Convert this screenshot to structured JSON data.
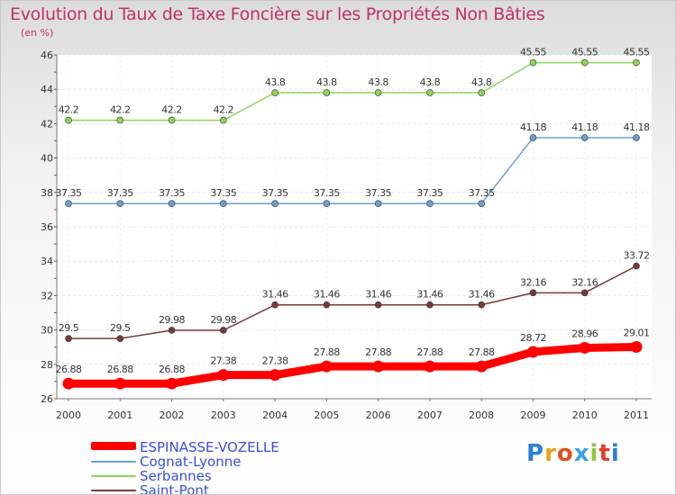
{
  "title": "Evolution du Taux de Taxe Foncière sur les Propriétés Non Bâties",
  "unit": "(en %)",
  "logo_text": "Proxiti",
  "chart_data": {
    "type": "line",
    "title": "Evolution du Taux de Taxe Foncière sur les Propriétés Non Bâties",
    "ylabel": "(en %)",
    "xlabel": "",
    "x": [
      "2000",
      "2001",
      "2002",
      "2003",
      "2004",
      "2005",
      "2006",
      "2007",
      "2008",
      "2009",
      "2010",
      "2011"
    ],
    "ylim": [
      26,
      46
    ],
    "yticks": [
      26,
      28,
      30,
      32,
      34,
      36,
      38,
      40,
      42,
      44,
      46
    ],
    "grid": true,
    "legend_position": "bottom-left",
    "series": [
      {
        "name": "ESPINASSE-VOZELLE",
        "color": "#ff0000",
        "thick": true,
        "values": [
          26.88,
          26.88,
          26.88,
          27.38,
          27.38,
          27.88,
          27.88,
          27.88,
          27.88,
          28.72,
          28.96,
          29.01
        ],
        "labels": [
          "26.88",
          "26.88",
          "26.88",
          "27.38",
          "27.38",
          "27.88",
          "27.88",
          "27.88",
          "27.88",
          "28.72",
          "28.96",
          "29.01"
        ]
      },
      {
        "name": "Cognat-Lyonne",
        "color": "#6b9fd1",
        "thick": false,
        "values": [
          37.35,
          37.35,
          37.35,
          37.35,
          37.35,
          37.35,
          37.35,
          37.35,
          37.35,
          41.18,
          41.18,
          41.18
        ],
        "labels": [
          "37.35",
          "37.35",
          "37.35",
          "37.35",
          "37.35",
          "37.35",
          "37.35",
          "37.35",
          "37.35",
          "41.18",
          "41.18",
          "41.18"
        ]
      },
      {
        "name": "Serbannes",
        "color": "#8fd35a",
        "thick": false,
        "values": [
          42.2,
          42.2,
          42.2,
          42.2,
          43.8,
          43.8,
          43.8,
          43.8,
          43.8,
          45.55,
          45.55,
          45.55
        ],
        "labels": [
          "42.2",
          "42.2",
          "42.2",
          "42.2",
          "43.8",
          "43.8",
          "43.8",
          "43.8",
          "43.8",
          "45.55",
          "45.55",
          "45.55"
        ]
      },
      {
        "name": "Saint-Pont",
        "color": "#7a3a3a",
        "thick": false,
        "values": [
          29.5,
          29.5,
          29.98,
          29.98,
          31.46,
          31.46,
          31.46,
          31.46,
          31.46,
          32.16,
          32.16,
          33.72
        ],
        "labels": [
          "29.5",
          "29.5",
          "29.98",
          "29.98",
          "31.46",
          "31.46",
          "31.46",
          "31.46",
          "31.46",
          "32.16",
          "32.16",
          "33.72"
        ]
      }
    ]
  }
}
